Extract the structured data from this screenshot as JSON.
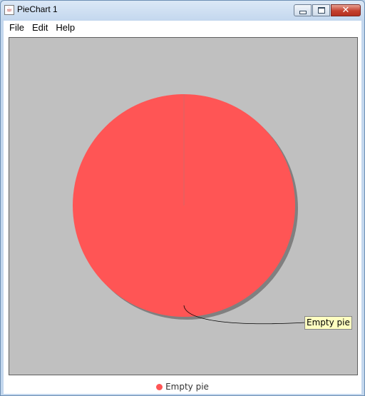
{
  "window": {
    "title": "PieChart 1",
    "app_icon": "java-cup-icon",
    "controls": [
      "minimize-icon",
      "maximize-icon",
      "close-icon"
    ]
  },
  "menu": {
    "items": [
      "File",
      "Edit",
      "Help"
    ]
  },
  "colors": {
    "plot_background": "#c0c0c0",
    "slice": "#ff5555",
    "shadow": "#808080",
    "label_background": "#ffffc0"
  },
  "chart_data": {
    "type": "pie",
    "categories": [
      "Empty pie"
    ],
    "values": [
      1
    ],
    "title": "",
    "label": "Empty pie",
    "legend": {
      "position": "bottom",
      "entries": [
        {
          "name": "Empty pie",
          "color": "#ff5555"
        }
      ]
    }
  }
}
